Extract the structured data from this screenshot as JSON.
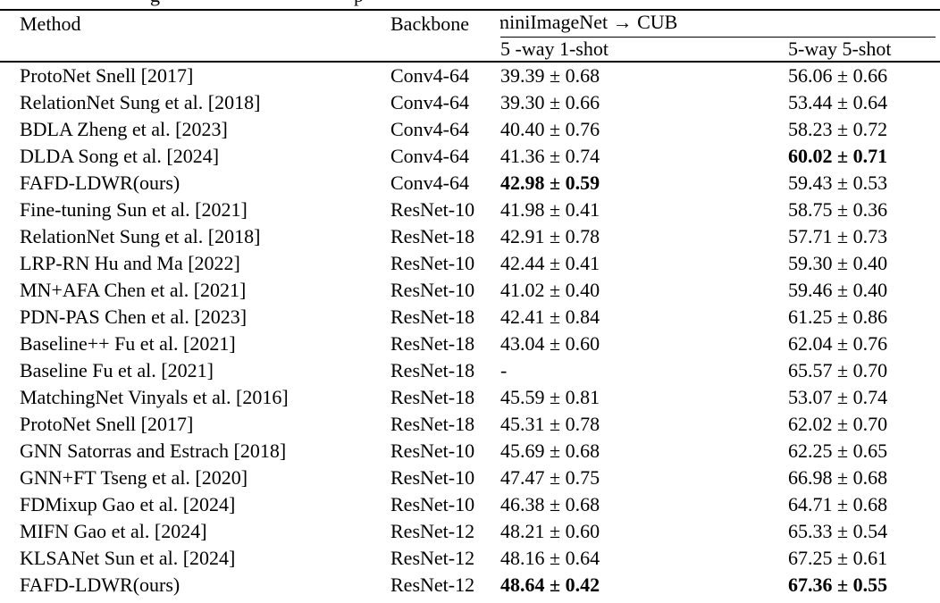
{
  "colors": {
    "background": "#ffffff",
    "text": "#000000",
    "rules": "#000000"
  },
  "caption_fragments": [
    "g",
    "p"
  ],
  "table": {
    "headers": {
      "method": "Method",
      "backbone": "Backbone",
      "group": "miniImageNet → CUB",
      "one_shot": "5 -way 1-shot",
      "five_shot": "5-way 5-shot"
    },
    "rows": [
      {
        "method": "ProtoNet Snell [2017]",
        "backbone": "Conv4-64",
        "one_shot": "39.39 ± 0.68",
        "one_shot_bold": false,
        "five_shot": "56.06 ± 0.66",
        "five_shot_bold": false
      },
      {
        "method": "RelationNet Sung et al. [2018]",
        "backbone": "Conv4-64",
        "one_shot": "39.30 ± 0.66",
        "one_shot_bold": false,
        "five_shot": "53.44 ± 0.64",
        "five_shot_bold": false
      },
      {
        "method": "BDLA Zheng et al. [2023]",
        "backbone": "Conv4-64",
        "one_shot": "40.40 ± 0.76",
        "one_shot_bold": false,
        "five_shot": "58.23 ± 0.72",
        "five_shot_bold": false
      },
      {
        "method": "DLDA Song et al. [2024]",
        "backbone": "Conv4-64",
        "one_shot": "41.36 ± 0.74",
        "one_shot_bold": false,
        "five_shot": "60.02 ± 0.71",
        "five_shot_bold": true
      },
      {
        "method": "FAFD-LDWR(ours)",
        "backbone": "Conv4-64",
        "one_shot": "42.98 ± 0.59",
        "one_shot_bold": true,
        "five_shot": "59.43 ± 0.53",
        "five_shot_bold": false
      },
      {
        "method": "Fine-tuning Sun et al. [2021]",
        "backbone": "ResNet-10",
        "one_shot": "41.98 ± 0.41",
        "one_shot_bold": false,
        "five_shot": "58.75 ± 0.36",
        "five_shot_bold": false
      },
      {
        "method": "RelationNet Sung et al. [2018]",
        "backbone": "ResNet-18",
        "one_shot": "42.91 ± 0.78",
        "one_shot_bold": false,
        "five_shot": "57.71 ± 0.73",
        "five_shot_bold": false
      },
      {
        "method": "LRP-RN Hu and Ma [2022]",
        "backbone": "ResNet-10",
        "one_shot": "42.44 ± 0.41",
        "one_shot_bold": false,
        "five_shot": "59.30 ± 0.40",
        "five_shot_bold": false
      },
      {
        "method": "MN+AFA Chen et al. [2021]",
        "backbone": "ResNet-10",
        "one_shot": "41.02 ± 0.40",
        "one_shot_bold": false,
        "five_shot": "59.46 ± 0.40",
        "five_shot_bold": false
      },
      {
        "method": "PDN-PAS Chen et al. [2023]",
        "backbone": "ResNet-18",
        "one_shot": "42.41 ± 0.84",
        "one_shot_bold": false,
        "five_shot": "61.25 ± 0.86",
        "five_shot_bold": false
      },
      {
        "method": "Baseline++ Fu et al. [2021]",
        "backbone": "ResNet-18",
        "one_shot": "43.04 ± 0.60",
        "one_shot_bold": false,
        "five_shot": "62.04 ± 0.76",
        "five_shot_bold": false
      },
      {
        "method": "Baseline Fu et al. [2021]",
        "backbone": "ResNet-18",
        "one_shot": "-",
        "one_shot_bold": false,
        "five_shot": "65.57 ± 0.70",
        "five_shot_bold": false
      },
      {
        "method": "MatchingNet Vinyals et al. [2016]",
        "backbone": "ResNet-18",
        "one_shot": "45.59 ± 0.81",
        "one_shot_bold": false,
        "five_shot": "53.07 ± 0.74",
        "five_shot_bold": false
      },
      {
        "method": "ProtoNet Snell [2017]",
        "backbone": "ResNet-18",
        "one_shot": "45.31 ± 0.78",
        "one_shot_bold": false,
        "five_shot": "62.02 ± 0.70",
        "five_shot_bold": false
      },
      {
        "method": "GNN Satorras and Estrach [2018]",
        "backbone": "ResNet-10",
        "one_shot": "45.69 ± 0.68",
        "one_shot_bold": false,
        "five_shot": "62.25 ± 0.65",
        "five_shot_bold": false
      },
      {
        "method": "GNN+FT Tseng et al. [2020]",
        "backbone": "ResNet-10",
        "one_shot": "47.47 ± 0.75",
        "one_shot_bold": false,
        "five_shot": "66.98 ± 0.68",
        "five_shot_bold": false
      },
      {
        "method": "FDMixup Gao et al. [2024]",
        "backbone": "ResNet-10",
        "one_shot": "46.38 ± 0.68",
        "one_shot_bold": false,
        "five_shot": "64.71 ± 0.68",
        "five_shot_bold": false
      },
      {
        "method": "MIFN Gao et al. [2024]",
        "backbone": "ResNet-12",
        "one_shot": "48.21 ± 0.60",
        "one_shot_bold": false,
        "five_shot": "65.33 ± 0.54",
        "five_shot_bold": false
      },
      {
        "method": "KLSANet Sun et al. [2024]",
        "backbone": "ResNet-12",
        "one_shot": "48.16 ± 0.64",
        "one_shot_bold": false,
        "five_shot": "67.25 ± 0.61",
        "five_shot_bold": false
      },
      {
        "method": "FAFD-LDWR(ours)",
        "backbone": "ResNet-12",
        "one_shot": "48.64 ± 0.42",
        "one_shot_bold": true,
        "five_shot": "67.36 ± 0.55",
        "five_shot_bold": true
      }
    ]
  }
}
